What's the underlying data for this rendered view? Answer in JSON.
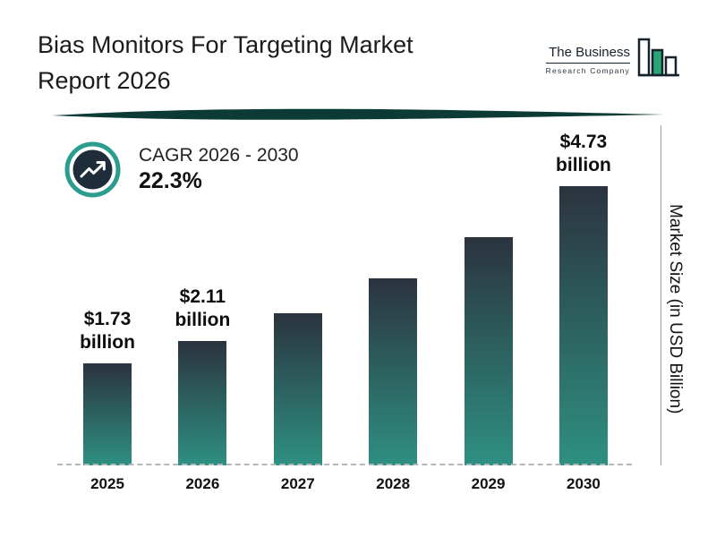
{
  "header": {
    "title": "Bias Monitors For Targeting Market Report 2026",
    "logo": {
      "line1": "The Business",
      "line2": "Research Company"
    }
  },
  "cagr": {
    "label": "CAGR 2026 - 2030",
    "value": "22.3%"
  },
  "chart_data": {
    "type": "bar",
    "title": "Bias Monitors For Targeting Market Report 2026",
    "categories": [
      "2025",
      "2026",
      "2027",
      "2028",
      "2029",
      "2030"
    ],
    "values": [
      1.73,
      2.11,
      2.58,
      3.16,
      3.87,
      4.73
    ],
    "value_labels": [
      "$1.73 billion",
      "$2.11 billion",
      null,
      null,
      null,
      "$4.73 billion"
    ],
    "xlabel": "",
    "ylabel": "Market Size (in USD Billion)",
    "ylim": [
      0,
      5
    ],
    "grid": false,
    "legend": "none"
  },
  "colors": {
    "bar_top": "#2b333e",
    "bar_bottom": "#2e9082",
    "accent_teal": "#2a9d8f",
    "cagr_circle_navy": "#1f2d3a",
    "swoosh_dark_teal": "#0c3a36",
    "logo_green": "#2aa578",
    "axis_gray": "#b3b7ba",
    "text_dark": "#1b1b1b"
  }
}
